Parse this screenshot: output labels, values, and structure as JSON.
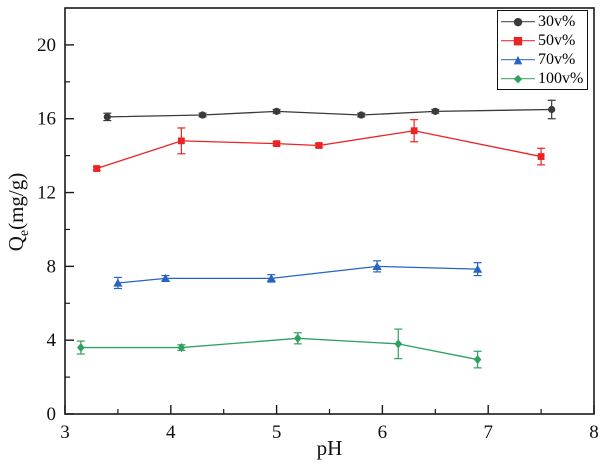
{
  "figure": {
    "background": "#ffffff",
    "axis_color": "#1a1a1a",
    "tick_direction": "in",
    "frame": "box"
  },
  "chart_data": {
    "type": "line",
    "title": "",
    "xlabel": "pH",
    "ylabel": "Qe(mg/g)",
    "ylabel_rich": {
      "base": "Q",
      "sub": "e",
      "rest": "(mg/g)"
    },
    "xlim": [
      3,
      8
    ],
    "ylim": [
      0,
      22
    ],
    "x_major_ticks": [
      3,
      4,
      5,
      6,
      7,
      8
    ],
    "x_minor_step": 0.5,
    "y_major_ticks": [
      0,
      4,
      8,
      12,
      16,
      20
    ],
    "y_minor_step": 2,
    "grid": false,
    "error_bars": true,
    "legend_position": "top-right",
    "series": [
      {
        "name": "30v%",
        "color": "#3a3a3a",
        "marker": "circle",
        "x": [
          3.4,
          4.3,
          5.0,
          5.8,
          6.5,
          7.6
        ],
        "y": [
          16.1,
          16.2,
          16.4,
          16.2,
          16.4,
          16.5
        ],
        "yerr": [
          0.2,
          0.1,
          0.1,
          0.1,
          0.1,
          0.5
        ]
      },
      {
        "name": "50v%",
        "color": "#ed2224",
        "marker": "square",
        "x": [
          3.3,
          4.1,
          5.0,
          5.4,
          6.3,
          7.5
        ],
        "y": [
          13.3,
          14.8,
          14.65,
          14.55,
          15.35,
          13.95
        ],
        "yerr": [
          0.1,
          0.7,
          0.1,
          0.1,
          0.6,
          0.45
        ]
      },
      {
        "name": "70v%",
        "color": "#2563c4",
        "marker": "triangle-up",
        "x": [
          3.5,
          3.95,
          4.95,
          5.95,
          6.9
        ],
        "y": [
          7.1,
          7.35,
          7.35,
          8.0,
          7.85
        ],
        "yerr": [
          0.3,
          0.15,
          0.2,
          0.3,
          0.35
        ]
      },
      {
        "name": "100v%",
        "color": "#2ea05f",
        "marker": "diamond",
        "x": [
          3.15,
          4.1,
          5.2,
          6.15,
          6.9
        ],
        "y": [
          3.6,
          3.6,
          4.1,
          3.8,
          2.95
        ],
        "yerr": [
          0.35,
          0.15,
          0.3,
          0.8,
          0.45
        ]
      }
    ]
  }
}
